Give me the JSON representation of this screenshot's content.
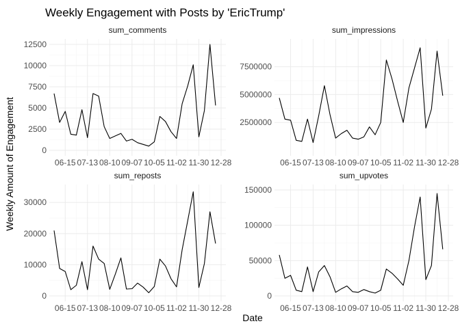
{
  "chart_data": {
    "type": "line",
    "title": "Weekly Engagement with Posts by 'EricTrump'",
    "xlabel": "Date",
    "ylabel": "Weekly Amount of Engagement",
    "grid": true,
    "x_tick_labels": [
      "06-15",
      "07-13",
      "08-10",
      "09-07",
      "10-05",
      "11-02",
      "11-30",
      "12-28"
    ],
    "x": [
      "2020-06-01",
      "2020-06-08",
      "2020-06-15",
      "2020-06-22",
      "2020-06-29",
      "2020-07-06",
      "2020-07-13",
      "2020-07-20",
      "2020-07-27",
      "2020-08-03",
      "2020-08-10",
      "2020-08-17",
      "2020-08-24",
      "2020-08-31",
      "2020-09-07",
      "2020-09-14",
      "2020-09-21",
      "2020-09-28",
      "2020-10-05",
      "2020-10-12",
      "2020-10-19",
      "2020-10-26",
      "2020-11-02",
      "2020-11-09",
      "2020-11-16",
      "2020-11-23",
      "2020-11-30",
      "2020-12-07",
      "2020-12-14",
      "2020-12-21",
      "2020-12-28"
    ],
    "panels": [
      {
        "strip": "sum_comments",
        "ylim": [
          0,
          12500
        ],
        "y_ticks": [
          0,
          2500,
          5000,
          7500,
          10000,
          12500
        ],
        "y_tick_labels": [
          "0",
          "2500",
          "5000",
          "7500",
          "10000",
          "12500"
        ],
        "values": [
          6700,
          3300,
          4600,
          1900,
          1800,
          4800,
          1500,
          6700,
          6400,
          2800,
          1400,
          1700,
          2000,
          1100,
          1300,
          900,
          700,
          500,
          1000,
          4000,
          3400,
          2200,
          1400,
          5500,
          7600,
          10100,
          1600,
          4700,
          12500,
          5300,
          null
        ]
      },
      {
        "strip": "sum_impressions",
        "ylim": [
          0,
          9500000
        ],
        "y_ticks": [
          2500000,
          5000000,
          7500000
        ],
        "y_tick_labels": [
          "2500000",
          "5000000",
          "7500000"
        ],
        "values": [
          4700000,
          2800000,
          2700000,
          900000,
          800000,
          2800000,
          700000,
          3100000,
          5800000,
          3200000,
          1100000,
          1500000,
          1800000,
          1100000,
          1000000,
          1200000,
          2100000,
          1400000,
          2500000,
          8100000,
          6400000,
          4400000,
          2500000,
          5600000,
          7400000,
          9200000,
          2000000,
          3700000,
          8900000,
          4900000,
          null
        ]
      },
      {
        "strip": "sum_reposts",
        "ylim": [
          0,
          34000
        ],
        "y_ticks": [
          0,
          10000,
          20000,
          30000
        ],
        "y_tick_labels": [
          "0",
          "10000",
          "20000",
          "30000"
        ],
        "values": [
          21000,
          8800,
          7800,
          2000,
          3400,
          11000,
          2000,
          16000,
          11800,
          10400,
          2100,
          7000,
          12200,
          2200,
          2300,
          4100,
          2800,
          1000,
          3000,
          11800,
          9600,
          5500,
          2900,
          14800,
          24100,
          33400,
          2700,
          10400,
          27000,
          16800,
          null
        ]
      },
      {
        "strip": "sum_upvotes",
        "ylim": [
          0,
          150000
        ],
        "y_ticks": [
          0,
          50000,
          100000,
          150000
        ],
        "y_tick_labels": [
          "0",
          "50000",
          "100000",
          "150000"
        ],
        "values": [
          58000,
          25000,
          29000,
          8000,
          6000,
          41000,
          6000,
          34000,
          43000,
          27000,
          5000,
          10000,
          14000,
          6000,
          5000,
          9000,
          6000,
          4000,
          8000,
          38000,
          32000,
          24000,
          15000,
          50000,
          98000,
          140000,
          23000,
          43000,
          145000,
          66000,
          null
        ]
      }
    ]
  }
}
